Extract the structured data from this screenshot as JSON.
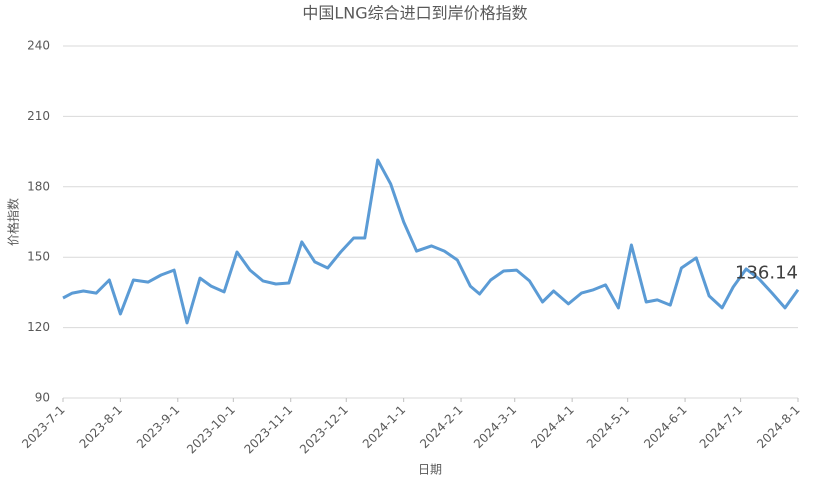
{
  "chart_data": {
    "type": "line",
    "title": "中国LNG综合进口到岸价格指数",
    "x_label": "日期",
    "y_label": "价格指数",
    "x": [
      "2023-7-1",
      "2023-7-6",
      "2023-7-12",
      "2023-7-19",
      "2023-7-26",
      "2023-8-1",
      "2023-8-8",
      "2023-8-16",
      "2023-8-23",
      "2023-8-30",
      "2023-9-6",
      "2023-9-13",
      "2023-9-19",
      "2023-9-26",
      "2023-10-3",
      "2023-10-10",
      "2023-10-17",
      "2023-10-24",
      "2023-10-31",
      "2023-11-7",
      "2023-11-14",
      "2023-11-21",
      "2023-11-28",
      "2023-12-5",
      "2023-12-11",
      "2023-12-18",
      "2023-12-25",
      "2024-1-1",
      "2024-1-8",
      "2024-1-16",
      "2024-1-23",
      "2024-1-30",
      "2024-2-6",
      "2024-2-11",
      "2024-2-17",
      "2024-2-24",
      "2024-3-2",
      "2024-3-9",
      "2024-3-16",
      "2024-3-22",
      "2024-3-30",
      "2024-4-6",
      "2024-4-12",
      "2024-4-19",
      "2024-4-26",
      "2024-5-3",
      "2024-5-11",
      "2024-5-17",
      "2024-5-24",
      "2024-5-30",
      "2024-6-7",
      "2024-6-14",
      "2024-6-21",
      "2024-6-27",
      "2024-7-4",
      "2024-7-11",
      "2024-7-18",
      "2024-7-25",
      "2024-8-1"
    ],
    "series": [
      {
        "color": "#5b9bd5",
        "values": [
          132.6,
          134.7,
          135.6,
          134.7,
          140.3,
          125.8,
          140.3,
          139.4,
          142.4,
          144.5,
          122.0,
          141.1,
          137.7,
          135.2,
          152.2,
          144.5,
          139.9,
          138.6,
          139.0,
          156.5,
          148.0,
          145.4,
          152.2,
          158.2,
          158.2,
          191.4,
          181.2,
          165.0,
          152.6,
          154.8,
          152.6,
          148.8,
          137.7,
          134.3,
          140.3,
          144.1,
          144.5,
          139.9,
          130.9,
          135.6,
          130.1,
          134.7,
          136.0,
          138.2,
          128.4,
          155.2,
          130.9,
          131.8,
          129.6,
          145.4,
          149.7,
          133.5,
          128.4,
          137.3,
          145.0,
          140.7,
          134.7,
          128.4,
          136.14
        ]
      }
    ],
    "xlim": [
      "2023-7-1",
      "2024-8-1"
    ],
    "xticks": [
      "2023-7-1",
      "2023-8-1",
      "2023-9-1",
      "2023-10-1",
      "2023-11-1",
      "2023-12-1",
      "2024-1-1",
      "2024-2-1",
      "2024-3-1",
      "2024-4-1",
      "2024-5-1",
      "2024-6-1",
      "2024-7-1",
      "2024-8-1"
    ],
    "ylim": [
      90,
      240
    ],
    "yticks": [
      90,
      120,
      150,
      180,
      210,
      240
    ],
    "grid": true
  }
}
